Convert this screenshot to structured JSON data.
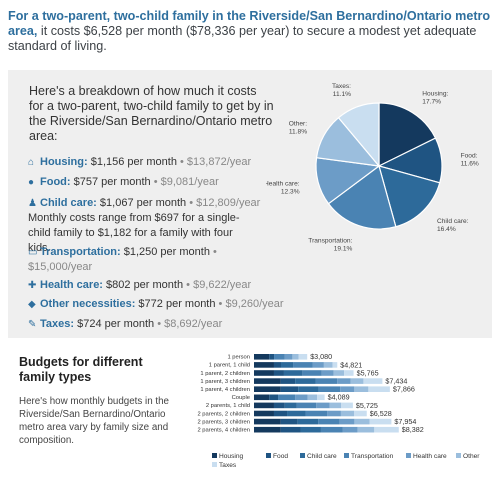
{
  "headline": {
    "bold": "For a two-parent, two-child family in the Riverside/San Bernardino/Ontario metro area,",
    "rest": " it costs $6,528 per month ($78,336 per year) to secure a modest yet adequate standard of living."
  },
  "breakdown": {
    "intro": "Here's a breakdown of how much it costs for a two-parent, two-child family to get by in the Riverside/San Bernardino/Ontario metro area:",
    "items": [
      {
        "icon": "house-icon",
        "glyph": "⌂",
        "category": "Housing:",
        "monthly": " $1,156 per month",
        "yearly": " • $13,872/year"
      },
      {
        "icon": "apple-icon",
        "glyph": "●",
        "category": "Food:",
        "monthly": " $757 per month",
        "yearly": " • $9,081/year"
      },
      {
        "icon": "child-icon",
        "glyph": "♟",
        "category": "Child care:",
        "monthly": " $1,067 per month",
        "yearly": " • $12,809/year"
      },
      {
        "icon": "bus-icon",
        "glyph": "▭",
        "category": "Transportation:",
        "monthly": " $1,250 per month",
        "yearly": " • $15,000/year"
      },
      {
        "icon": "health-cross-icon",
        "glyph": "✚",
        "category": "Health care:",
        "monthly": " $802 per month",
        "yearly": " • $9,622/year"
      },
      {
        "icon": "tag-icon",
        "glyph": "◆",
        "category": "Other necessities:",
        "monthly": " $772 per month",
        "yearly": " • $9,260/year"
      },
      {
        "icon": "taxes-icon",
        "glyph": "✎",
        "category": "Taxes:",
        "monthly": " $724 per month",
        "yearly": " • $8,692/year"
      }
    ],
    "childcare_note": "Monthly costs range from $697 for a single-child family to $1,182 for a family with four kids."
  },
  "chart_data": [
    {
      "type": "pie",
      "slices": [
        {
          "label": "Housing:",
          "value": 17.7,
          "display": "17.7%",
          "color": "#14395e"
        },
        {
          "label": "Food:",
          "value": 11.6,
          "display": "11.6%",
          "color": "#1f5482"
        },
        {
          "label": "Child care:",
          "value": 16.4,
          "display": "16.4%",
          "color": "#2d6a9a"
        },
        {
          "label": "Transportation:",
          "value": 19.1,
          "display": "19.1%",
          "color": "#4a83b3"
        },
        {
          "label": "Health care:",
          "value": 12.3,
          "display": "12.3%",
          "color": "#6c9cc7"
        },
        {
          "label": "Other:",
          "value": 11.8,
          "display": "11.8%",
          "color": "#9bbedd"
        },
        {
          "label": "Taxes:",
          "value": 11.1,
          "display": "11.1%",
          "color": "#c9def0"
        }
      ]
    },
    {
      "type": "bar",
      "stacked": true,
      "orientation": "horizontal",
      "title": "Budgets for different family types",
      "description": "Here's how monthly budgets in the Riverside/San Bernardino/Ontario metro area vary by family size and composition.",
      "categories": [
        "1 person",
        "1 parent, 1 child",
        "1 parent, 2 children",
        "1 parent, 3 children",
        "1 parent, 4 children",
        "Couple",
        "2 parents, 1 child",
        "2 parents, 2 children",
        "2 parents, 3 children",
        "2 parents, 4 children"
      ],
      "totals": [
        "$3,080",
        "$4,821",
        "$5,765",
        "$7,434",
        "$7,866",
        "$4,089",
        "$5,725",
        "$6,528",
        "$7,954",
        "$8,382"
      ],
      "total_values": [
        3080,
        4821,
        5765,
        7434,
        7866,
        4089,
        5725,
        6528,
        7954,
        8382
      ],
      "xlim": [
        0,
        8800
      ],
      "series": [
        {
          "name": "Housing",
          "color": "#14395e",
          "values": [
            883,
            1156,
            1156,
            1543,
            1543,
            883,
            1156,
            1156,
            1543,
            1543
          ]
        },
        {
          "name": "Food",
          "color": "#1f5482",
          "values": [
            277,
            408,
            578,
            838,
            1015,
            508,
            628,
            757,
            988,
            1150
          ]
        },
        {
          "name": "Child care",
          "color": "#2d6a9a",
          "values": [
            0,
            697,
            1067,
            1182,
            1182,
            0,
            697,
            1067,
            1182,
            1182
          ]
        },
        {
          "name": "Transportation",
          "color": "#4a83b3",
          "values": [
            625,
            1125,
            1125,
            1250,
            1250,
            1000,
            1125,
            1250,
            1250,
            1250
          ]
        },
        {
          "name": "Health care",
          "color": "#6c9cc7",
          "values": [
            438,
            660,
            690,
            780,
            820,
            720,
            780,
            802,
            850,
            880
          ]
        },
        {
          "name": "Other",
          "color": "#9bbedd",
          "values": [
            357,
            505,
            600,
            742,
            812,
            540,
            665,
            772,
            885,
            960
          ]
        },
        {
          "name": "Taxes",
          "color": "#c9def0",
          "values": [
            500,
            270,
            549,
            1099,
            1244,
            438,
            674,
            724,
            1256,
            1417
          ]
        }
      ]
    }
  ]
}
